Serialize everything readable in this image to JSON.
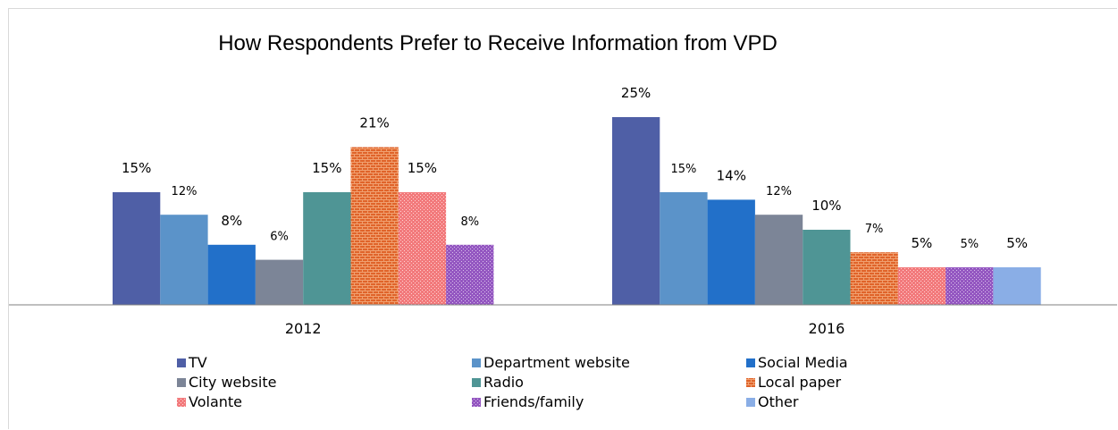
{
  "chart_data": {
    "type": "bar",
    "title": "How Respondents Prefer to Receive Information from VPD",
    "xlabel": "",
    "ylabel": "",
    "ylim": [
      0,
      27
    ],
    "grid": false,
    "legend_position": "bottom",
    "categories": [
      "2012",
      "2016"
    ],
    "series": [
      {
        "name": "TV",
        "values": [
          15,
          25
        ],
        "labels": [
          "15%",
          "25%"
        ],
        "color": "#4f5fa6",
        "pattern": "solid"
      },
      {
        "name": "Department website",
        "values": [
          12,
          15
        ],
        "labels": [
          "12%",
          "15%"
        ],
        "color": "#5b93c9",
        "pattern": "solid"
      },
      {
        "name": "Social Media",
        "values": [
          8,
          14
        ],
        "labels": [
          "8%",
          "14%"
        ],
        "color": "#2270c9",
        "pattern": "solid"
      },
      {
        "name": "City website",
        "values": [
          6,
          12
        ],
        "labels": [
          "6%",
          "12%"
        ],
        "color": "#7c8597",
        "pattern": "solid"
      },
      {
        "name": "Radio",
        "values": [
          15,
          10
        ],
        "labels": [
          "15%",
          "10%"
        ],
        "color": "#4f9595",
        "pattern": "solid"
      },
      {
        "name": "Local paper",
        "values": [
          21,
          7
        ],
        "labels": [
          "21%",
          "7%"
        ],
        "color": "#e0642a",
        "pattern": "brick"
      },
      {
        "name": "Volante",
        "values": [
          15,
          5
        ],
        "labels": [
          "15%",
          "5%"
        ],
        "color": "#f47a7c",
        "pattern": "dots"
      },
      {
        "name": "Friends/family",
        "values": [
          8,
          5
        ],
        "labels": [
          "8%",
          "5%"
        ],
        "color": "#9e62c4",
        "pattern": "dots"
      },
      {
        "name": "Other",
        "values": [
          null,
          5
        ],
        "labels": [
          "",
          "5%"
        ],
        "color": "#8aaee6",
        "pattern": "solid"
      }
    ]
  }
}
